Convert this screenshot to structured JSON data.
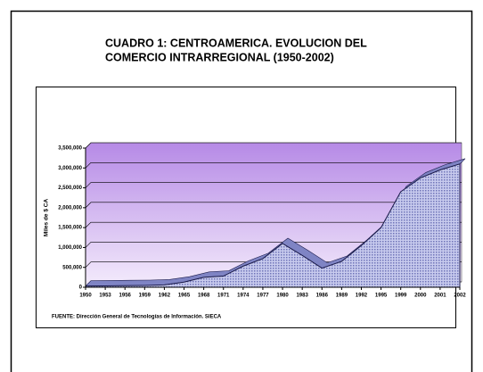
{
  "chart_data": {
    "type": "area",
    "title": [
      "CUADRO 1: CENTROAMERICA. EVOLUCION DEL",
      "COMERCIO INTRARREGIONAL (1950-2002)"
    ],
    "y_label": "Miles de $ CA",
    "source": "FUENTE: Dirección General de Tecnologías de Información. SIECA",
    "categories": [
      "1950",
      "1953",
      "1956",
      "1959",
      "1962",
      "1965",
      "1968",
      "1971",
      "1974",
      "1977",
      "1980",
      "1983",
      "1986",
      "1989",
      "1992",
      "1995",
      "1999",
      "2000",
      "2001",
      "2002"
    ],
    "values": [
      30000,
      35000,
      40000,
      45000,
      60000,
      130000,
      250000,
      280000,
      530000,
      720000,
      1100000,
      800000,
      480000,
      650000,
      1050000,
      1500000,
      2400000,
      2750000,
      2950000,
      3100000
    ],
    "color": "#9aa0d8",
    "line_color": "#1a1a4a",
    "ylim": [
      0,
      3500000
    ],
    "yticks": [
      0,
      {
        "value": 500000,
        "label": "500,000"
      },
      {
        "value": 1000000,
        "label": "1,000,000"
      },
      {
        "value": 1500000,
        "label": "1,500,000"
      },
      {
        "value": 2000000,
        "label": "2,000,000"
      },
      {
        "value": 2500000,
        "label": "2,500,000"
      },
      {
        "value": 3000000,
        "label": "3,000,000"
      },
      {
        "value": 3500000,
        "label": "3,500,000"
      }
    ],
    "grid": true
  }
}
